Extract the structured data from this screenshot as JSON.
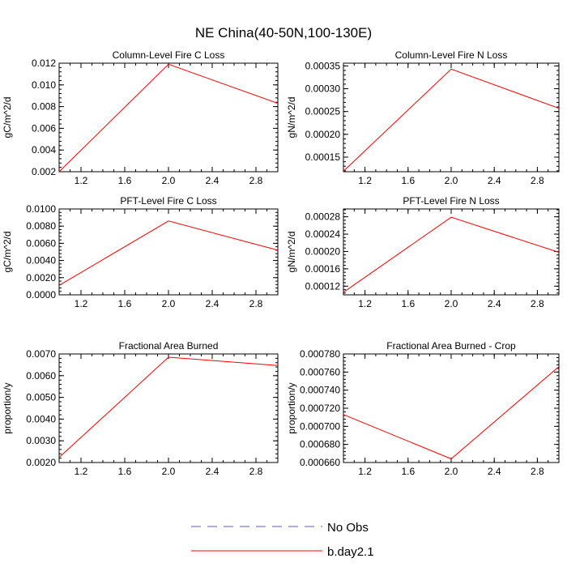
{
  "figure": {
    "title": "NE China(40-50N,100-130E)",
    "legend": [
      {
        "label": "No Obs",
        "color": "#5a5ad2",
        "style": "dashed"
      },
      {
        "label": "b.day2.1",
        "color": "#ff0000",
        "style": "solid"
      }
    ]
  },
  "chart_data": [
    {
      "type": "line",
      "title": "Column-Level Fire C Loss",
      "ylabel": "gC/m^2/d",
      "xlabel": "",
      "xlim": [
        1.0,
        3.0
      ],
      "ylim": [
        0.002,
        0.012
      ],
      "xticks": [
        1.2,
        1.6,
        2.0,
        2.4,
        2.8
      ],
      "xtick_labels": [
        "1.2",
        "1.6",
        "2.0",
        "2.4",
        "2.8"
      ],
      "yticks": [
        0.002,
        0.004,
        0.006,
        0.008,
        0.01,
        0.012
      ],
      "ytick_labels": [
        "0.002",
        "0.004",
        "0.006",
        "0.008",
        "0.010",
        "0.012"
      ],
      "x": [
        1,
        2,
        3
      ],
      "series": [
        {
          "name": "b.day2.1",
          "color": "#ff0000",
          "values": [
            0.002,
            0.0119,
            0.0083
          ]
        }
      ]
    },
    {
      "type": "line",
      "title": "Column-Level Fire N Loss",
      "ylabel": "gN/m^2/d",
      "xlabel": "",
      "xlim": [
        1.0,
        3.0
      ],
      "ylim": [
        0.000118,
        0.000356
      ],
      "xticks": [
        1.2,
        1.6,
        2.0,
        2.4,
        2.8
      ],
      "xtick_labels": [
        "1.2",
        "1.6",
        "2.0",
        "2.4",
        "2.8"
      ],
      "yticks": [
        0.00015,
        0.0002,
        0.00025,
        0.0003,
        0.00035
      ],
      "ytick_labels": [
        "0.00015",
        "0.00020",
        "0.00025",
        "0.00030",
        "0.00035"
      ],
      "x": [
        1,
        2,
        3
      ],
      "series": [
        {
          "name": "b.day2.1",
          "color": "#ff0000",
          "values": [
            0.000119,
            0.000343,
            0.000257
          ]
        }
      ]
    },
    {
      "type": "line",
      "title": "PFT-Level Fire C Loss",
      "ylabel": "gC/m^2/d",
      "xlabel": "",
      "xlim": [
        1.0,
        3.0
      ],
      "ylim": [
        0.0,
        0.01
      ],
      "xticks": [
        1.2,
        1.6,
        2.0,
        2.4,
        2.8
      ],
      "xtick_labels": [
        "1.2",
        "1.6",
        "2.0",
        "2.4",
        "2.8"
      ],
      "yticks": [
        0.0,
        0.002,
        0.004,
        0.006,
        0.008,
        0.01
      ],
      "ytick_labels": [
        "0.0000",
        "0.0020",
        "0.0040",
        "0.0060",
        "0.0080",
        "0.0100"
      ],
      "x": [
        1,
        2,
        3
      ],
      "series": [
        {
          "name": "b.day2.1",
          "color": "#ff0000",
          "values": [
            0.0011,
            0.0086,
            0.0052
          ]
        }
      ]
    },
    {
      "type": "line",
      "title": "PFT-Level Fire N Loss",
      "ylabel": "gN/m^2/d",
      "xlabel": "",
      "xlim": [
        1.0,
        3.0
      ],
      "ylim": [
        0.0001,
        0.000298
      ],
      "xticks": [
        1.2,
        1.6,
        2.0,
        2.4,
        2.8
      ],
      "xtick_labels": [
        "1.2",
        "1.6",
        "2.0",
        "2.4",
        "2.8"
      ],
      "yticks": [
        0.00012,
        0.00016,
        0.0002,
        0.00024,
        0.00028
      ],
      "ytick_labels": [
        "0.00012",
        "0.00016",
        "0.00020",
        "0.00024",
        "0.00028"
      ],
      "x": [
        1,
        2,
        3
      ],
      "series": [
        {
          "name": "b.day2.1",
          "color": "#ff0000",
          "values": [
            0.000106,
            0.000279,
            0.000198
          ]
        }
      ]
    },
    {
      "type": "line",
      "title": "Fractional Area Burned",
      "ylabel": "proportion/y",
      "xlabel": "",
      "xlim": [
        1.0,
        3.0
      ],
      "ylim": [
        0.002,
        0.007
      ],
      "xticks": [
        1.2,
        1.6,
        2.0,
        2.4,
        2.8
      ],
      "xtick_labels": [
        "1.2",
        "1.6",
        "2.0",
        "2.4",
        "2.8"
      ],
      "yticks": [
        0.002,
        0.003,
        0.004,
        0.005,
        0.006,
        0.007
      ],
      "ytick_labels": [
        "0.0020",
        "0.0030",
        "0.0040",
        "0.0050",
        "0.0060",
        "0.0070"
      ],
      "x": [
        1,
        2,
        3
      ],
      "series": [
        {
          "name": "b.day2.1",
          "color": "#ff0000",
          "values": [
            0.00223,
            0.00685,
            0.00647
          ]
        }
      ]
    },
    {
      "type": "line",
      "title": "Fractional Area Burned - Crop",
      "ylabel": "proportion/y",
      "xlabel": "",
      "xlim": [
        1.0,
        3.0
      ],
      "ylim": [
        0.00066,
        0.00078
      ],
      "xticks": [
        1.2,
        1.6,
        2.0,
        2.4,
        2.8
      ],
      "xtick_labels": [
        "1.2",
        "1.6",
        "2.0",
        "2.4",
        "2.8"
      ],
      "yticks": [
        0.00066,
        0.00068,
        0.0007,
        0.00072,
        0.00074,
        0.00076,
        0.00078
      ],
      "ytick_labels": [
        "0.000660",
        "0.000680",
        "0.000700",
        "0.000720",
        "0.000740",
        "0.000760",
        "0.000780"
      ],
      "x": [
        1,
        2,
        3
      ],
      "series": [
        {
          "name": "b.day2.1",
          "color": "#ff0000",
          "values": [
            0.000713,
            0.000664,
            0.000766
          ]
        }
      ]
    }
  ]
}
